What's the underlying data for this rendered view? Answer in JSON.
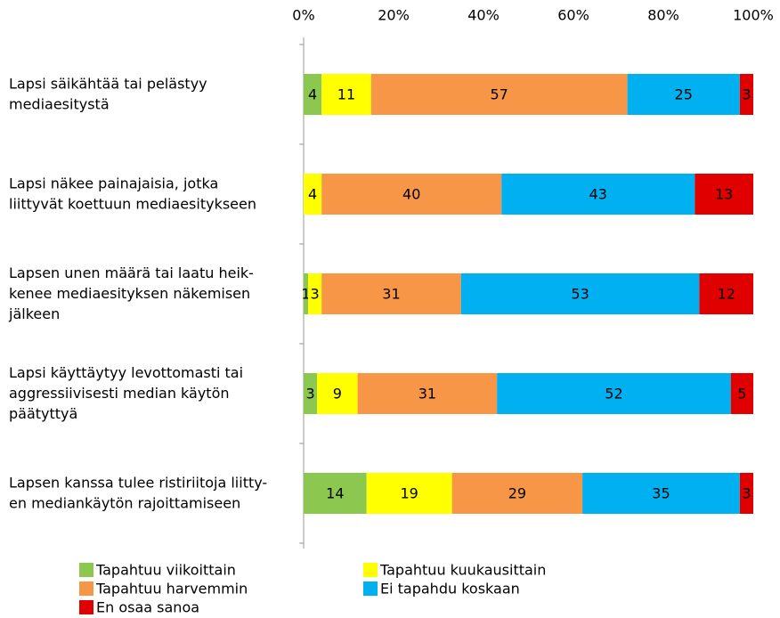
{
  "chart_data": {
    "type": "stacked_barh",
    "categories": [
      "Lapsi säikähtää tai pelästyy\nmediaesitystä",
      "Lapsi näkee painajaisia, jotka\nliittyvät koettuun mediaesitykseen",
      "Lapsen unen määrä tai laatu heik-\nkenee mediaesityksen näkemisen\njälkeen",
      "Lapsi käyttäytyy levottomasti tai\naggressiivisesti median käytön\npäätyttyä",
      "Lapsen kanssa tulee ristiriitoja liitty-\nen mediankäytön rajoittamiseen"
    ],
    "series": [
      {
        "name": "Tapahtuu viikoittain",
        "color": "#8cc850",
        "values": [
          4,
          null,
          1,
          3,
          14
        ]
      },
      {
        "name": "Tapahtuu kuukausittain",
        "color": "#ffff00",
        "values": [
          11,
          4,
          3,
          9,
          19
        ]
      },
      {
        "name": "Tapahtuu harvemmin",
        "color": "#f79646",
        "values": [
          57,
          40,
          31,
          31,
          29
        ]
      },
      {
        "name": "Ei tapahdu koskaan",
        "color": "#00b0f0",
        "values": [
          25,
          43,
          53,
          52,
          35
        ]
      },
      {
        "name": "En osaa sanoa",
        "color": "#e00000",
        "values": [
          3,
          13,
          12,
          5,
          3
        ]
      }
    ],
    "xlim": [
      0,
      100
    ],
    "xticks": [
      {
        "value": 0,
        "label": "0%"
      },
      {
        "value": 20,
        "label": "20%"
      },
      {
        "value": 40,
        "label": "40%"
      },
      {
        "value": 60,
        "label": "60%"
      },
      {
        "value": 80,
        "label": "80%"
      },
      {
        "value": 100,
        "label": "100%"
      }
    ]
  }
}
